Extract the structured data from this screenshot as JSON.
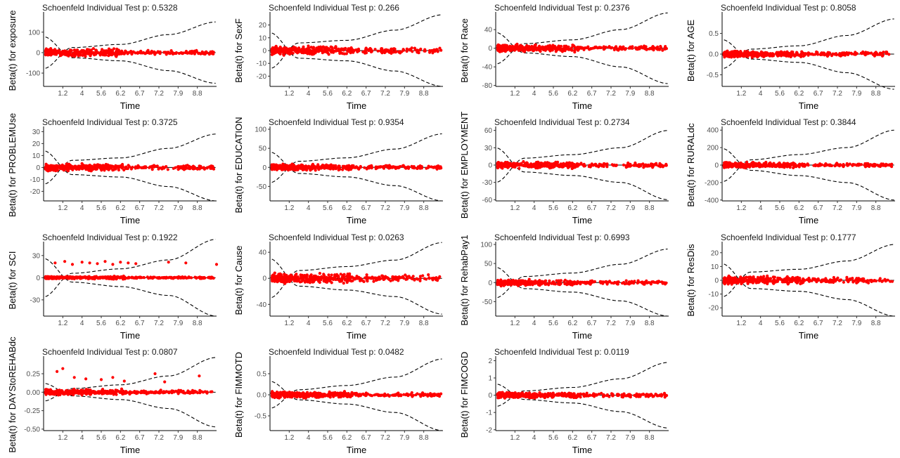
{
  "figure": {
    "background": "#ffffff",
    "point_color": "#ff0000",
    "line_color": "#000000"
  },
  "chart_data": [
    {
      "type": "scatter",
      "title": "Schoenfeld Individual Test p: 0.5328",
      "xlabel": "Time",
      "ylabel": "Beta(t) for exposure",
      "xticks": [
        "1.2",
        "4",
        "5.6",
        "6.2",
        "6.7",
        "7.2",
        "7.9",
        "8.8"
      ],
      "yticks": [
        100,
        0,
        -100
      ],
      "ylim": [
        -165,
        185
      ],
      "spread": 18,
      "band": [
        [
          0,
          78
        ],
        [
          1.5,
          -25
        ],
        [
          4,
          -40
        ],
        [
          6.5,
          -88
        ],
        [
          9,
          -150
        ]
      ],
      "outliers": []
    },
    {
      "type": "scatter",
      "title": "Schoenfeld Individual Test p: 0.266",
      "xlabel": "Time",
      "ylabel": "Beta(t) for SexF",
      "xticks": [
        "1.2",
        "4",
        "5.6",
        "6.2",
        "6.7",
        "7.2",
        "7.9",
        "8.8"
      ],
      "yticks": [
        20,
        10,
        0,
        -10,
        -20
      ],
      "ylim": [
        -28,
        28
      ],
      "spread": 3.5,
      "band": [
        [
          0,
          14
        ],
        [
          1.5,
          -6
        ],
        [
          4,
          -8
        ],
        [
          6.5,
          -16
        ],
        [
          9,
          -28
        ]
      ],
      "outliers": []
    },
    {
      "type": "scatter",
      "title": "Schoenfeld Individual Test p: 0.2376",
      "xlabel": "Time",
      "ylabel": "Beta(t) for Race",
      "xticks": [
        "1.2",
        "4",
        "5.6",
        "6.2",
        "6.7",
        "7.2",
        "7.9",
        "8.8"
      ],
      "yticks": [
        40,
        0,
        -40,
        -80
      ],
      "ylim": [
        -82,
        72
      ],
      "spread": 8,
      "band": [
        [
          0,
          34
        ],
        [
          1.5,
          -10
        ],
        [
          4,
          -18
        ],
        [
          6.5,
          -40
        ],
        [
          9,
          -76
        ]
      ],
      "outliers": []
    },
    {
      "type": "scatter",
      "title": "Schoenfeld Individual Test p: 0.8058",
      "xlabel": "Time",
      "ylabel": "Beta(t) for AGE",
      "xticks": [
        "1.2",
        "4",
        "5.6",
        "6.2",
        "6.7",
        "7.2",
        "7.9",
        "8.8"
      ],
      "yticks": [
        0.5,
        0.0,
        -0.5
      ],
      "ylim": [
        -0.78,
        0.95
      ],
      "spread": 0.08,
      "band": [
        [
          0,
          0.35
        ],
        [
          1.5,
          -0.12
        ],
        [
          4,
          -0.2
        ],
        [
          6.5,
          -0.45
        ],
        [
          9,
          -0.85
        ]
      ],
      "outliers": []
    },
    {
      "type": "scatter",
      "title": "Schoenfeld Individual Test p: 0.3725",
      "xlabel": "Time",
      "ylabel": "Beta(t) for PROBLEMUse",
      "xticks": [
        "1.2",
        "4",
        "5.6",
        "6.2",
        "6.7",
        "7.2",
        "7.9",
        "8.8"
      ],
      "yticks": [
        30,
        20,
        10,
        0,
        -10,
        -20
      ],
      "ylim": [
        -28,
        32
      ],
      "spread": 3,
      "band": [
        [
          0,
          14
        ],
        [
          1.5,
          -6
        ],
        [
          4,
          -8
        ],
        [
          6.5,
          -16
        ],
        [
          9,
          -28
        ]
      ],
      "outliers": []
    },
    {
      "type": "scatter",
      "title": "Schoenfeld Individual Test p: 0.9354",
      "xlabel": "Time",
      "ylabel": "Beta(t) for EDUCATION",
      "xticks": [
        "1.2",
        "4",
        "5.6",
        "6.2",
        "6.7",
        "7.2",
        "7.9",
        "8.8"
      ],
      "yticks": [
        100,
        50,
        0,
        -50
      ],
      "ylim": [
        -88,
        100
      ],
      "spread": 8,
      "band": [
        [
          0,
          40
        ],
        [
          1.5,
          -16
        ],
        [
          4,
          -25
        ],
        [
          6.5,
          -48
        ],
        [
          9,
          -88
        ]
      ],
      "outliers": []
    },
    {
      "type": "scatter",
      "title": "Schoenfeld Individual Test p: 0.2734",
      "xlabel": "Time",
      "ylabel": "Beta(t) for EMPLOYMENT",
      "xticks": [
        "1.2",
        "4",
        "5.6",
        "6.2",
        "6.7",
        "7.2",
        "7.9",
        "8.8"
      ],
      "yticks": [
        60,
        30,
        0,
        -30,
        -60
      ],
      "ylim": [
        -62,
        62
      ],
      "spread": 6,
      "band": [
        [
          0,
          30
        ],
        [
          1.5,
          -12
        ],
        [
          4,
          -18
        ],
        [
          6.5,
          -30
        ],
        [
          9,
          -60
        ]
      ],
      "outliers": []
    },
    {
      "type": "scatter",
      "title": "Schoenfeld Individual Test p: 0.3844",
      "xlabel": "Time",
      "ylabel": "Beta(t) for RURALdc",
      "xticks": [
        "1.2",
        "4",
        "5.6",
        "6.2",
        "6.7",
        "7.2",
        "7.9",
        "8.8"
      ],
      "yticks": [
        400,
        200,
        0,
        -200,
        -400
      ],
      "ylim": [
        -410,
        410
      ],
      "spread": 30,
      "band": [
        [
          0,
          190
        ],
        [
          1.5,
          -60
        ],
        [
          4,
          -120
        ],
        [
          6.5,
          -200
        ],
        [
          9,
          -400
        ]
      ],
      "outliers": []
    },
    {
      "type": "scatter",
      "title": "Schoenfeld Individual Test p: 0.1922",
      "xlabel": "Time",
      "ylabel": "Beta(t) for SCI",
      "xticks": [
        "1.2",
        "4",
        "5.6",
        "6.2",
        "6.7",
        "7.2",
        "7.9",
        "8.8"
      ],
      "yticks": [
        30,
        0,
        -30
      ],
      "ylim": [
        -52,
        45
      ],
      "spread": 2,
      "band": [
        [
          0,
          26
        ],
        [
          1.5,
          -6
        ],
        [
          4,
          -12
        ],
        [
          6.5,
          -24
        ],
        [
          9,
          -52
        ]
      ],
      "outliers": [
        [
          0.6,
          20
        ],
        [
          1.1,
          22
        ],
        [
          1.5,
          18
        ],
        [
          2.0,
          21
        ],
        [
          2.4,
          20
        ],
        [
          2.8,
          19
        ],
        [
          3.2,
          22
        ],
        [
          3.6,
          18
        ],
        [
          4.0,
          21
        ],
        [
          4.4,
          20
        ],
        [
          4.8,
          19
        ],
        [
          6.5,
          21
        ],
        [
          7.4,
          20
        ],
        [
          9.0,
          18
        ]
      ]
    },
    {
      "type": "scatter",
      "title": "Schoenfeld Individual Test p: 0.0263",
      "xlabel": "Time",
      "ylabel": "Beta(t) for Cause",
      "xticks": [
        "1.2",
        "4",
        "5.6",
        "6.2",
        "6.7",
        "7.2",
        "7.9",
        "8.8"
      ],
      "yticks": [
        40,
        0,
        -40
      ],
      "ylim": [
        -58,
        52
      ],
      "spread": 8,
      "band": [
        [
          0,
          30
        ],
        [
          1.5,
          -12
        ],
        [
          4,
          -18
        ],
        [
          6.5,
          -28
        ],
        [
          9,
          -55
        ]
      ],
      "outliers": []
    },
    {
      "type": "scatter",
      "title": "Schoenfeld Individual Test p: 0.6993",
      "xlabel": "Time",
      "ylabel": "Beta(t) for RehabPay1",
      "xticks": [
        "1.2",
        "4",
        "5.6",
        "6.2",
        "6.7",
        "7.2",
        "7.9",
        "8.8"
      ],
      "yticks": [
        100,
        50,
        0,
        -50
      ],
      "ylim": [
        -88,
        100
      ],
      "spread": 8,
      "band": [
        [
          0,
          40
        ],
        [
          1.5,
          -16
        ],
        [
          4,
          -25
        ],
        [
          6.5,
          -48
        ],
        [
          9,
          -88
        ]
      ],
      "outliers": []
    },
    {
      "type": "scatter",
      "title": "Schoenfeld Individual Test p: 0.1777",
      "xlabel": "Time",
      "ylabel": "Beta(t) for ResDis",
      "xticks": [
        "1.2",
        "4",
        "5.6",
        "6.2",
        "6.7",
        "7.2",
        "7.9",
        "8.8"
      ],
      "yticks": [
        20,
        10,
        0,
        -10,
        -20
      ],
      "ylim": [
        -26,
        26
      ],
      "spread": 3,
      "band": [
        [
          0,
          12
        ],
        [
          1.5,
          -6
        ],
        [
          4,
          -8
        ],
        [
          6.5,
          -14
        ],
        [
          9,
          -26
        ]
      ],
      "outliers": []
    },
    {
      "type": "scatter",
      "title": "Schoenfeld Individual Test p: 0.0807",
      "xlabel": "Time",
      "ylabel": "Beta(t) for DAYStoREHABdc",
      "xticks": [
        "1.2",
        "4",
        "5.6",
        "6.2",
        "6.7",
        "7.2",
        "7.9",
        "8.8"
      ],
      "yticks": [
        0.25,
        0.0,
        -0.25,
        -0.5
      ],
      "ylim": [
        -0.52,
        0.45
      ],
      "spread": 0.04,
      "band": [
        [
          0,
          0.12
        ],
        [
          1.5,
          -0.05
        ],
        [
          4,
          -0.1
        ],
        [
          6.5,
          -0.22
        ],
        [
          9,
          -0.47
        ]
      ],
      "outliers": [
        [
          0.7,
          0.28
        ],
        [
          1.0,
          0.32
        ],
        [
          1.6,
          0.2
        ],
        [
          2.2,
          0.18
        ],
        [
          3.0,
          0.17
        ],
        [
          3.6,
          0.2
        ],
        [
          4.2,
          0.15
        ],
        [
          5.8,
          0.25
        ],
        [
          6.3,
          0.14
        ],
        [
          8.1,
          0.22
        ]
      ]
    },
    {
      "type": "scatter",
      "title": "Schoenfeld Individual Test p: 0.0482",
      "xlabel": "Time",
      "ylabel": "Beta(t) for FIMMOTD",
      "xticks": [
        "1.2",
        "4",
        "5.6",
        "6.2",
        "6.7",
        "7.2",
        "7.9",
        "8.8"
      ],
      "yticks": [
        0.5,
        0.0,
        -0.5
      ],
      "ylim": [
        -0.85,
        0.85
      ],
      "spread": 0.08,
      "band": [
        [
          0,
          0.32
        ],
        [
          1.5,
          -0.12
        ],
        [
          4,
          -0.22
        ],
        [
          6.5,
          -0.42
        ],
        [
          9,
          -0.85
        ]
      ],
      "outliers": []
    },
    {
      "type": "scatter",
      "title": "Schoenfeld Individual Test p: 0.0119",
      "xlabel": "Time",
      "ylabel": "Beta(t) for FIMCOGD",
      "xticks": [
        "1.2",
        "4",
        "5.6",
        "6.2",
        "6.7",
        "7.2",
        "7.9",
        "8.8"
      ],
      "yticks": [
        2,
        1,
        0,
        -1,
        -2
      ],
      "ylim": [
        -2.05,
        2.1
      ],
      "spread": 0.18,
      "band": [
        [
          0,
          0.65
        ],
        [
          1.5,
          -0.25
        ],
        [
          4,
          -0.45
        ],
        [
          6.5,
          -0.95
        ],
        [
          9,
          -1.9
        ]
      ],
      "outliers": []
    }
  ]
}
